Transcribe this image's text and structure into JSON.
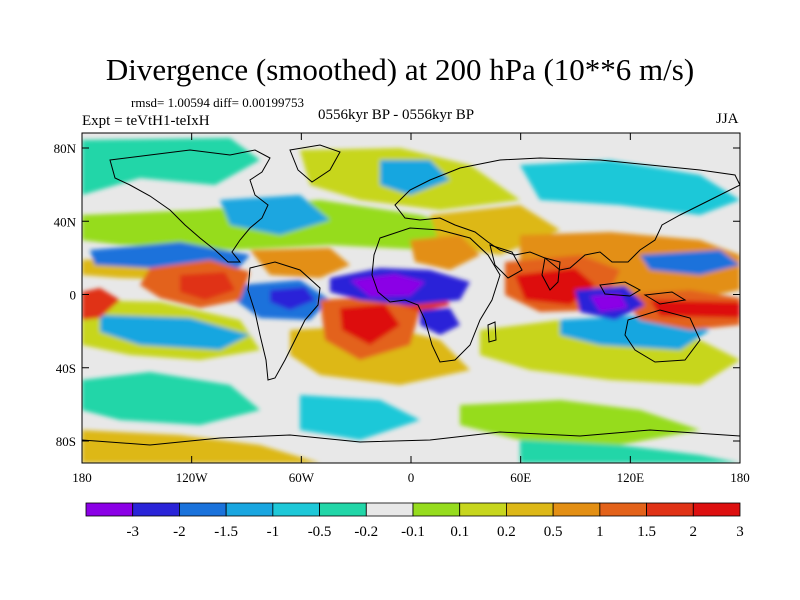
{
  "title": "Divergence (smoothed) at 200 hPa (10**6 m/s)",
  "stats": "rmsd= 1.00594 diff= 0.00199753",
  "experiment": "Expt = teVtH1-teIxH",
  "period": "0556kyr BP - 0556kyr BP",
  "season": "JJA",
  "axes": {
    "y_ticks": [
      "80N",
      "40N",
      "0",
      "40S",
      "80S"
    ],
    "x_ticks": [
      "180",
      "120W",
      "60W",
      "0",
      "60E",
      "120E",
      "180"
    ]
  },
  "colorbar": {
    "colors": [
      "#8b00e6",
      "#2a24d8",
      "#1a72db",
      "#19a6e0",
      "#1ec8d8",
      "#22d6a8",
      "#e8e8e8",
      "#96dc1e",
      "#c7d61e",
      "#ddb817",
      "#e38f14",
      "#e3621a",
      "#e03216",
      "#dd0f0f"
    ],
    "labels": [
      "-3",
      "-2",
      "-1.5",
      "-1",
      "-0.5",
      "-0.2",
      "-0.1",
      "0.1",
      "0.2",
      "0.5",
      "1",
      "1.5",
      "2",
      "3"
    ]
  }
}
